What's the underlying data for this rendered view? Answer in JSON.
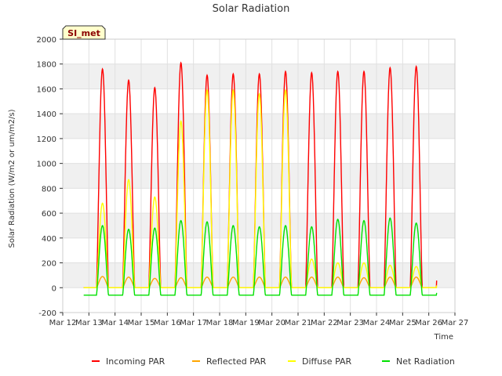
{
  "chart_data": {
    "type": "line",
    "title": "Solar Radiation",
    "xlabel": "Time",
    "ylabel": "Solar Radiation (W/m2 or um/m2/s)",
    "badge": "SI_met",
    "ylim": [
      -200,
      2000
    ],
    "xlim": [
      12,
      27
    ],
    "yticks": [
      -200,
      0,
      200,
      400,
      600,
      800,
      1000,
      1200,
      1400,
      1600,
      1800,
      2000
    ],
    "xticks": [
      {
        "day": 12,
        "label": "Mar 12"
      },
      {
        "day": 13,
        "label": "Mar 13"
      },
      {
        "day": 14,
        "label": "Mar 14"
      },
      {
        "day": 15,
        "label": "Mar 15"
      },
      {
        "day": 16,
        "label": "Mar 16"
      },
      {
        "day": 17,
        "label": "Mar 17"
      },
      {
        "day": 18,
        "label": "Mar 18"
      },
      {
        "day": 19,
        "label": "Mar 19"
      },
      {
        "day": 20,
        "label": "Mar 20"
      },
      {
        "day": 21,
        "label": "Mar 21"
      },
      {
        "day": 22,
        "label": "Mar 22"
      },
      {
        "day": 23,
        "label": "Mar 23"
      },
      {
        "day": 24,
        "label": "Mar 24"
      },
      {
        "day": 25,
        "label": "Mar 25"
      },
      {
        "day": 26,
        "label": "Mar 26"
      },
      {
        "day": 27,
        "label": "Mar 27"
      }
    ],
    "grid": true,
    "legend_position": "bottom",
    "x_start": 12.8,
    "x_end": 26.3,
    "days": [
      13,
      14,
      15,
      16,
      17,
      18,
      19,
      20,
      21,
      22,
      23,
      24,
      25,
      26
    ],
    "series": [
      {
        "name": "Incoming PAR",
        "color": "#ff0000",
        "baseline": 0,
        "peaks": [
          1760,
          1670,
          1610,
          1810,
          1710,
          1720,
          1720,
          1740,
          1730,
          1740,
          1740,
          1770,
          1780,
          1870
        ]
      },
      {
        "name": "Reflected PAR",
        "color": "#ffa500",
        "baseline": 0,
        "peaks": [
          90,
          85,
          75,
          80,
          85,
          85,
          85,
          85,
          85,
          85,
          80,
          85,
          85,
          90
        ]
      },
      {
        "name": "Diffuse PAR",
        "color": "#ffff00",
        "baseline": 0,
        "peaks": [
          680,
          870,
          730,
          1340,
          1590,
          1590,
          1560,
          1590,
          230,
          200,
          200,
          180,
          170,
          600
        ]
      },
      {
        "name": "Net Radiation",
        "color": "#00e000",
        "baseline": -60,
        "peaks": [
          500,
          470,
          480,
          540,
          530,
          500,
          490,
          500,
          490,
          550,
          540,
          560,
          520,
          540
        ]
      }
    ]
  }
}
